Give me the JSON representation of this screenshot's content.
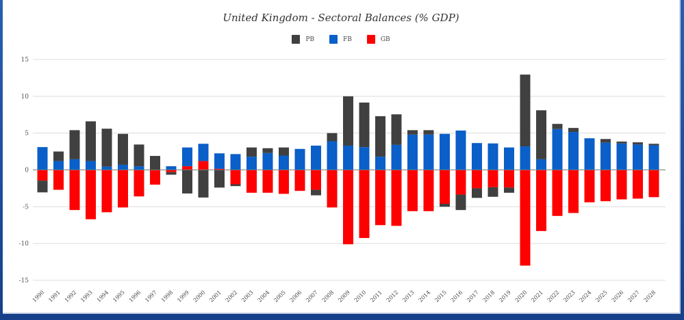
{
  "chart_data": {
    "type": "bar",
    "stacked": true,
    "title": "United Kingdom - Sectoral Balances (% GDP)",
    "xlabel": "",
    "ylabel": "",
    "ylim": [
      -15,
      15
    ],
    "yticks": [
      15,
      10,
      5,
      0,
      -5,
      -10,
      -15
    ],
    "grid": true,
    "legend_position": "top-center",
    "categories": [
      "1990",
      "1991",
      "1992",
      "1993",
      "1994",
      "1995",
      "1996",
      "1997",
      "1998",
      "1999",
      "2000",
      "2001",
      "2002",
      "2003",
      "2004",
      "2005",
      "2006",
      "2007",
      "2008",
      "2009",
      "2010",
      "2011",
      "2012",
      "2013",
      "2014",
      "2015",
      "2016",
      "2017",
      "2018",
      "2019",
      "2020",
      "2021",
      "2022",
      "2023",
      "2024",
      "2025",
      "2026",
      "2027",
      "2028"
    ],
    "series": [
      {
        "name": "GB",
        "color": "#ff0000",
        "values": [
          -1.45,
          -2.7,
          -5.45,
          -6.7,
          -5.75,
          -5.1,
          -3.6,
          -2.0,
          -0.3,
          0.5,
          1.2,
          0.15,
          -1.95,
          -3.1,
          -3.1,
          -3.25,
          -2.85,
          -2.7,
          -5.1,
          -10.1,
          -9.25,
          -7.5,
          -7.6,
          -5.6,
          -5.6,
          -4.6,
          -3.35,
          -2.5,
          -2.35,
          -2.4,
          -13.0,
          -8.3,
          -6.25,
          -5.85,
          -4.4,
          -4.25,
          -4.0,
          -3.9,
          -3.7
        ]
      },
      {
        "name": "FB",
        "color": "#0a5fc8",
        "values": [
          3.1,
          1.2,
          1.45,
          1.2,
          0.45,
          0.7,
          0.5,
          0.0,
          0.5,
          2.55,
          2.35,
          2.1,
          2.15,
          1.8,
          2.3,
          1.95,
          2.85,
          3.3,
          3.9,
          3.3,
          3.1,
          1.8,
          3.4,
          4.8,
          4.8,
          4.9,
          5.35,
          3.65,
          3.6,
          3.05,
          3.2,
          1.45,
          5.55,
          5.15,
          4.3,
          3.7,
          3.6,
          3.45,
          3.35
        ]
      },
      {
        "name": "PB",
        "color": "#404040",
        "values": [
          -1.6,
          1.3,
          3.95,
          5.4,
          5.15,
          4.2,
          2.95,
          1.9,
          -0.35,
          -3.2,
          -3.75,
          -2.4,
          -0.25,
          1.25,
          0.65,
          1.1,
          0.0,
          -0.75,
          1.1,
          6.7,
          6.05,
          5.5,
          4.15,
          0.6,
          0.6,
          -0.4,
          -2.1,
          -1.3,
          -1.3,
          -0.7,
          9.75,
          6.65,
          0.7,
          0.55,
          0.0,
          0.5,
          0.25,
          0.3,
          0.2
        ]
      }
    ],
    "legend": [
      {
        "name": "PB",
        "color": "#404040"
      },
      {
        "name": "FB",
        "color": "#0a5fc8"
      },
      {
        "name": "GB",
        "color": "#ff0000"
      }
    ]
  }
}
